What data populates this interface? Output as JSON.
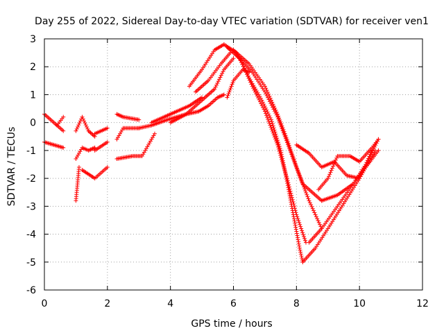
{
  "chart_data": {
    "type": "scatter",
    "title": "Day 255 of 2022, Sidereal Day-to-day VTEC variation (SDTVAR) for receiver ven1",
    "xlabel": "GPS time / hours",
    "ylabel": "SDTVAR / TECUs",
    "xlim": [
      0,
      12
    ],
    "ylim": [
      -6,
      3
    ],
    "xticks": [
      0,
      2,
      4,
      6,
      8,
      10,
      12
    ],
    "yticks": [
      -6,
      -5,
      -4,
      -3,
      -2,
      -1,
      0,
      1,
      2,
      3
    ],
    "xtick_labels": [
      "0",
      "2",
      "4",
      "6",
      "8",
      "10",
      "12"
    ],
    "ytick_labels": [
      "-6",
      "-5",
      "-4",
      "-3",
      "-2",
      "-1",
      "0",
      "1",
      "2",
      "3"
    ],
    "grid": true,
    "marker": "+",
    "color": "#ff0000",
    "series": [
      {
        "name": "track-1",
        "x": [
          0.0,
          0.3,
          0.6
        ],
        "y": [
          -0.7,
          -0.8,
          -0.9
        ]
      },
      {
        "name": "track-2",
        "x": [
          0.0,
          0.3,
          0.6
        ],
        "y": [
          0.3,
          0.0,
          -0.3
        ]
      },
      {
        "name": "track-3",
        "x": [
          0.4,
          0.6
        ],
        "y": [
          -0.1,
          0.2
        ]
      },
      {
        "name": "track-4",
        "x": [
          1.0,
          1.2,
          1.4,
          1.6
        ],
        "y": [
          -1.3,
          -0.9,
          -1.0,
          -0.9
        ]
      },
      {
        "name": "track-5",
        "x": [
          1.0,
          1.2,
          1.4,
          1.6
        ],
        "y": [
          -0.3,
          0.2,
          -0.3,
          -0.5
        ]
      },
      {
        "name": "track-6",
        "x": [
          1.0,
          1.1
        ],
        "y": [
          -2.8,
          -1.6
        ]
      },
      {
        "name": "track-7",
        "x": [
          1.2,
          1.6,
          2.0
        ],
        "y": [
          -1.7,
          -2.0,
          -1.6
        ]
      },
      {
        "name": "track-8",
        "x": [
          1.6,
          2.0
        ],
        "y": [
          -0.4,
          -0.2
        ]
      },
      {
        "name": "track-9",
        "x": [
          1.6,
          2.0
        ],
        "y": [
          -1.0,
          -0.7
        ]
      },
      {
        "name": "track-10",
        "x": [
          2.3,
          2.5,
          3.0
        ],
        "y": [
          -0.6,
          -0.2,
          -0.2
        ]
      },
      {
        "name": "track-11",
        "x": [
          2.3,
          2.5,
          3.0
        ],
        "y": [
          0.3,
          0.2,
          0.1
        ]
      },
      {
        "name": "track-12",
        "x": [
          2.3,
          2.8,
          3.1,
          3.5
        ],
        "y": [
          -1.3,
          -1.2,
          -1.2,
          -0.4
        ]
      },
      {
        "name": "track-13",
        "x": [
          3.0,
          3.4,
          3.9,
          4.5,
          5.0
        ],
        "y": [
          -0.2,
          -0.1,
          0.1,
          0.3,
          0.8
        ]
      },
      {
        "name": "track-14",
        "x": [
          3.4,
          3.8,
          4.2,
          4.6,
          5.0
        ],
        "y": [
          0.0,
          0.2,
          0.4,
          0.6,
          0.9
        ]
      },
      {
        "name": "track-15",
        "x": [
          4.0,
          4.5,
          4.9,
          5.2,
          5.5,
          5.7
        ],
        "y": [
          0.0,
          0.3,
          0.4,
          0.6,
          0.9,
          1.0
        ]
      },
      {
        "name": "track-16",
        "x": [
          4.6,
          5.0,
          5.4,
          5.7
        ],
        "y": [
          1.3,
          1.9,
          2.6,
          2.8
        ]
      },
      {
        "name": "track-17",
        "x": [
          4.8,
          5.2,
          5.6,
          5.9
        ],
        "y": [
          1.1,
          1.5,
          2.1,
          2.5
        ]
      },
      {
        "name": "track-18",
        "x": [
          5.0,
          5.4,
          5.7,
          6.0
        ],
        "y": [
          0.8,
          1.2,
          1.9,
          2.3
        ]
      },
      {
        "name": "track-19",
        "x": [
          5.7,
          6.1,
          6.5,
          6.9,
          7.2,
          7.5,
          7.7,
          7.9,
          8.1,
          8.2
        ],
        "y": [
          2.8,
          2.5,
          1.6,
          0.8,
          0.1,
          -1.0,
          -2.1,
          -3.3,
          -4.5,
          -5.0
        ]
      },
      {
        "name": "track-20",
        "x": [
          5.8,
          6.2,
          6.6,
          7.0,
          7.4,
          7.7,
          8.0,
          8.3
        ],
        "y": [
          2.7,
          2.3,
          1.3,
          0.4,
          -0.8,
          -2.0,
          -3.3,
          -4.3
        ]
      },
      {
        "name": "track-21",
        "x": [
          6.0,
          6.5,
          7.0,
          7.4,
          7.7,
          8.0,
          8.4,
          8.8
        ],
        "y": [
          2.6,
          2.1,
          1.3,
          0.3,
          -0.6,
          -1.6,
          -2.8,
          -3.8
        ]
      },
      {
        "name": "track-22",
        "x": [
          6.1,
          6.6,
          7.0,
          7.4,
          7.8,
          8.2,
          8.8
        ],
        "y": [
          2.4,
          1.8,
          1.1,
          0.2,
          -1.0,
          -2.2,
          -2.8
        ]
      },
      {
        "name": "track-23",
        "x": [
          5.8,
          6.0,
          6.3,
          6.5
        ],
        "y": [
          0.9,
          1.5,
          1.9,
          1.8
        ]
      },
      {
        "name": "track-24",
        "x": [
          8.2,
          8.6,
          9.0,
          9.5,
          10.0,
          10.5
        ],
        "y": [
          -5.0,
          -4.5,
          -3.8,
          -2.9,
          -2.0,
          -1.0
        ]
      },
      {
        "name": "track-25",
        "x": [
          8.4,
          8.8,
          9.3,
          9.8,
          10.2,
          10.6
        ],
        "y": [
          -4.3,
          -3.8,
          -3.0,
          -2.2,
          -1.5,
          -0.6
        ]
      },
      {
        "name": "track-26",
        "x": [
          8.8,
          9.3,
          9.8,
          10.2,
          10.6
        ],
        "y": [
          -2.8,
          -2.6,
          -2.2,
          -1.6,
          -1.0
        ]
      },
      {
        "name": "track-27",
        "x": [
          8.0,
          8.4,
          8.8,
          9.2,
          9.6,
          10.0,
          10.4
        ],
        "y": [
          -0.8,
          -1.1,
          -1.6,
          -1.4,
          -1.9,
          -2.0,
          -1.0
        ]
      },
      {
        "name": "track-28",
        "x": [
          8.7,
          9.0,
          9.3,
          9.7,
          10.0,
          10.4,
          10.6
        ],
        "y": [
          -2.4,
          -2.0,
          -1.2,
          -1.2,
          -1.4,
          -0.9,
          -0.6
        ]
      }
    ]
  }
}
